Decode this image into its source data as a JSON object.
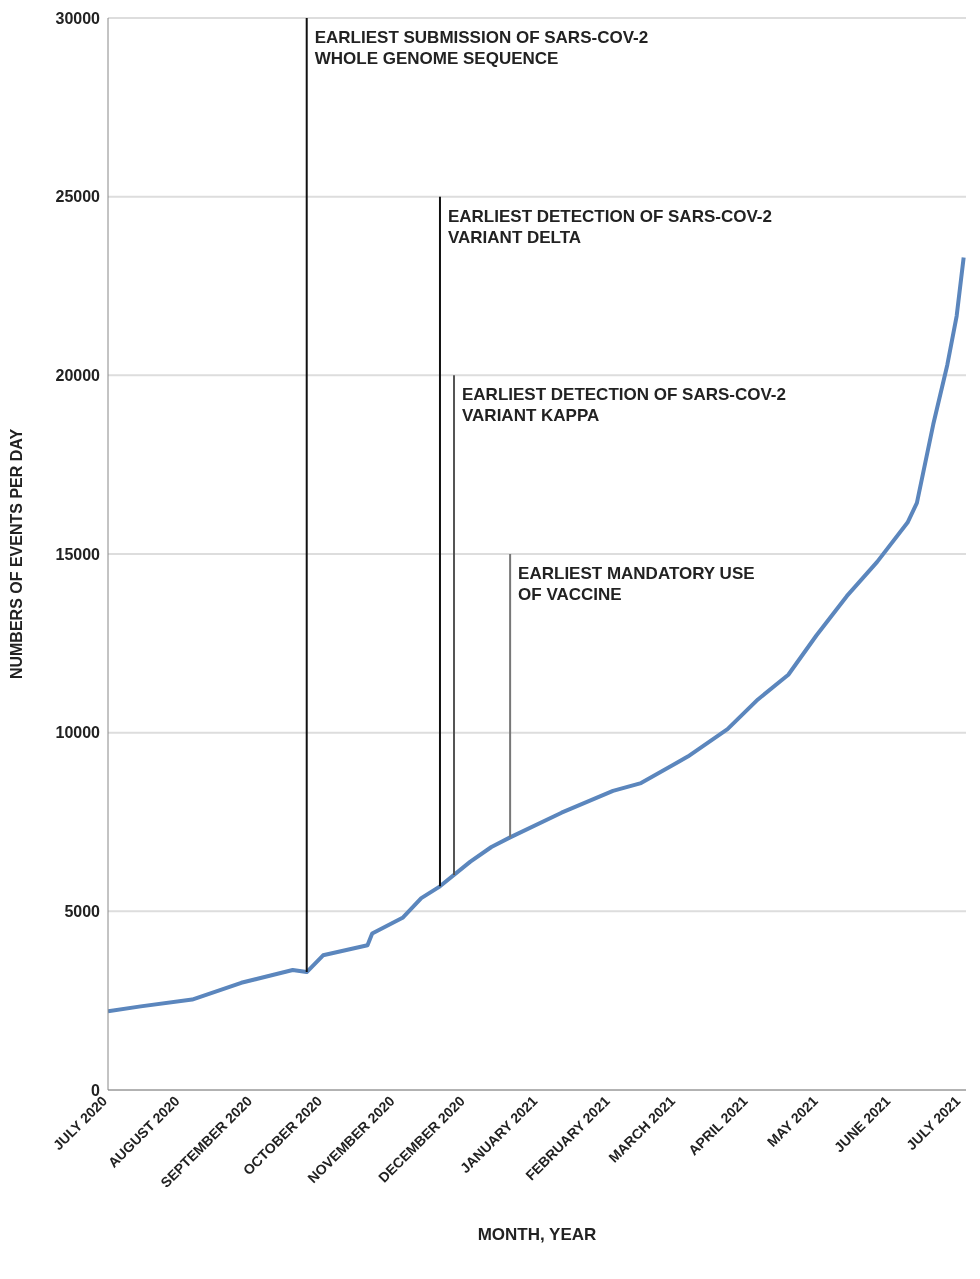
{
  "chart_data": {
    "type": "line",
    "xlabel": "MONTH, YEAR",
    "ylabel": "NUMBERS OF EVENTS PER DAY",
    "x": [
      "2020-07-01",
      "2020-07-15",
      "2020-08-06",
      "2020-08-27",
      "2020-09-18",
      "2020-09-24",
      "2020-10-01",
      "2020-10-20",
      "2020-10-22",
      "2020-11-04",
      "2020-11-12",
      "2020-11-20",
      "2020-12-03",
      "2020-12-12",
      "2020-12-20",
      "2021-01-11",
      "2021-02-02",
      "2021-02-14",
      "2021-03-06",
      "2021-03-23",
      "2021-04-05",
      "2021-04-18",
      "2021-04-30",
      "2021-05-13",
      "2021-05-26",
      "2021-06-08",
      "2021-06-12",
      "2021-06-19",
      "2021-06-25",
      "2021-06-29",
      "2021-07-02"
    ],
    "series": [
      {
        "color": "#5b86bd",
        "values": [
          2200,
          2340,
          2530,
          3000,
          3360,
          3300,
          3770,
          4050,
          4380,
          4820,
          5370,
          5700,
          6390,
          6800,
          7070,
          7760,
          8370,
          8590,
          9330,
          10100,
          10930,
          11620,
          12720,
          13820,
          14780,
          15880,
          16430,
          18630,
          20290,
          21660,
          23300
        ]
      }
    ],
    "xlim": [
      "2020-07-01",
      "2021-07-03"
    ],
    "xticks": [
      {
        "value": "2020-07-01",
        "label": "JULY 2020"
      },
      {
        "value": "2020-08-01",
        "label": "AUGUST 2020"
      },
      {
        "value": "2020-09-01",
        "label": "SEPTEMBER 2020"
      },
      {
        "value": "2020-10-01",
        "label": "OCTOBER 2020"
      },
      {
        "value": "2020-11-01",
        "label": "NOVEMBER 2020"
      },
      {
        "value": "2020-12-01",
        "label": "DECEMBER 2020"
      },
      {
        "value": "2021-01-01",
        "label": "JANUARY 2021"
      },
      {
        "value": "2021-02-01",
        "label": "FEBRUARY 2021"
      },
      {
        "value": "2021-03-01",
        "label": "MARCH 2021"
      },
      {
        "value": "2021-04-01",
        "label": "APRIL 2021"
      },
      {
        "value": "2021-05-01",
        "label": "MAY 2021"
      },
      {
        "value": "2021-06-01",
        "label": "JUNE 2021"
      },
      {
        "value": "2021-07-01",
        "label": "JULY 2021"
      }
    ],
    "ylim": [
      0,
      30000
    ],
    "yticks": [
      0,
      5000,
      10000,
      15000,
      20000,
      25000,
      30000
    ],
    "grid": "y",
    "marker": "none",
    "line_style": "solid",
    "ref_lines": [
      {
        "axis": "x",
        "value": "2020-09-24",
        "label": "EARLIEST SUBMISSION OF SARS-COV-2\nWHOLE GENOME SEQUENCE",
        "color": "#111111"
      },
      {
        "axis": "x",
        "value": "2020-11-20",
        "label": "EARLIEST DETECTION OF SARS-COV-2\nVARIANT DELTA",
        "color": "#111111"
      },
      {
        "axis": "x",
        "value": "2020-11-26",
        "label": "EARLIEST DETECTION OF SARS-COV-2\nVARIANT KAPPA",
        "color": "#555555"
      },
      {
        "axis": "x",
        "value": "2020-12-20",
        "label": "EARLIEST MANDATORY USE\nOF VACCINE",
        "color": "#777777"
      }
    ]
  }
}
